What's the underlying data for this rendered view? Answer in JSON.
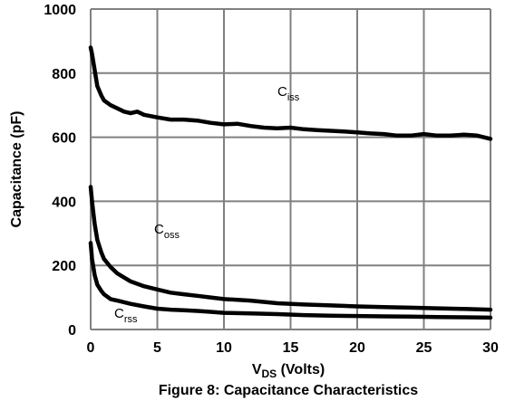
{
  "chart_data": {
    "type": "line",
    "caption": "Figure 8: Capacitance Characteristics",
    "xlabel": {
      "main": "V",
      "sub": "DS",
      "rest": " (Volts)"
    },
    "ylabel": "Capacitance (pF)",
    "xlim": [
      0,
      30
    ],
    "ylim": [
      0,
      1000
    ],
    "x_ticks": [
      0,
      5,
      10,
      15,
      20,
      25,
      30
    ],
    "y_ticks": [
      0,
      200,
      400,
      600,
      800,
      1000
    ],
    "grid": true,
    "series": [
      {
        "name": {
          "main": "C",
          "sub": "iss"
        },
        "x": [
          0,
          0.1,
          0.3,
          0.5,
          0.8,
          1.0,
          1.5,
          2.0,
          2.5,
          3.0,
          3.5,
          4.0,
          5.0,
          6.0,
          7.0,
          8.0,
          9.0,
          10.0,
          11.0,
          12.0,
          13.0,
          14.0,
          15.0,
          16.0,
          17.0,
          18.0,
          19.0,
          20.0,
          21.0,
          22.0,
          23.0,
          24.0,
          25.0,
          26.0,
          27.0,
          28.0,
          29.0,
          30.0
        ],
        "values": [
          880,
          860,
          810,
          760,
          730,
          715,
          700,
          690,
          680,
          675,
          680,
          670,
          662,
          655,
          655,
          652,
          645,
          640,
          642,
          635,
          630,
          628,
          630,
          625,
          622,
          620,
          618,
          615,
          612,
          610,
          605,
          605,
          610,
          605,
          605,
          608,
          605,
          595
        ]
      },
      {
        "name": {
          "main": "C",
          "sub": "oss"
        },
        "x": [
          0,
          0.1,
          0.3,
          0.5,
          0.8,
          1.0,
          1.5,
          2.0,
          3.0,
          4.0,
          5.0,
          6.0,
          7.0,
          8.0,
          9.0,
          10.0,
          12.0,
          14.0,
          16.0,
          18.0,
          20.0,
          22.0,
          24.0,
          26.0,
          28.0,
          30.0
        ],
        "values": [
          445,
          400,
          330,
          280,
          240,
          220,
          195,
          175,
          150,
          135,
          125,
          115,
          110,
          105,
          100,
          95,
          90,
          82,
          78,
          75,
          72,
          70,
          68,
          66,
          64,
          62
        ]
      },
      {
        "name": {
          "main": "C",
          "sub": "rss"
        },
        "x": [
          0,
          0.1,
          0.3,
          0.5,
          0.8,
          1.0,
          1.5,
          2.0,
          3.0,
          4.0,
          5.0,
          6.0,
          7.0,
          8.0,
          9.0,
          10.0,
          12.0,
          14.0,
          16.0,
          18.0,
          20.0,
          22.0,
          24.0,
          26.0,
          28.0,
          30.0
        ],
        "values": [
          270,
          220,
          170,
          140,
          120,
          110,
          95,
          90,
          80,
          72,
          65,
          62,
          60,
          58,
          55,
          52,
          50,
          48,
          45,
          43,
          42,
          41,
          40,
          39,
          38,
          37
        ]
      }
    ]
  }
}
